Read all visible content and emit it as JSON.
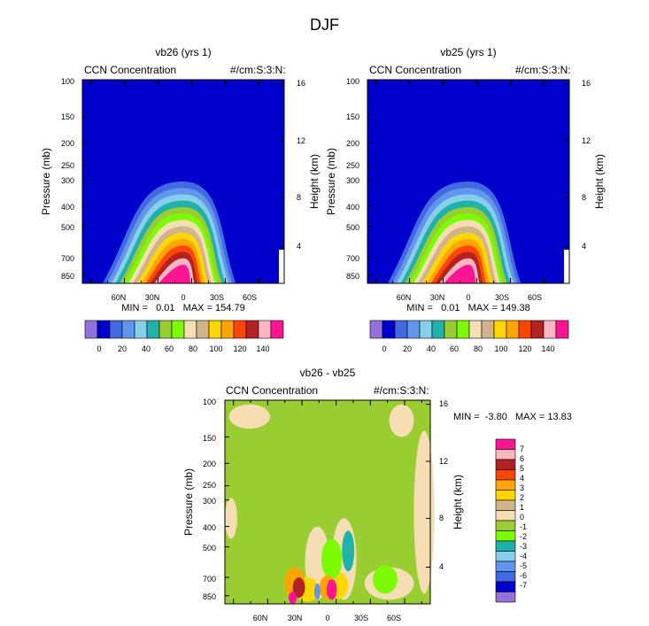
{
  "figure_title": "DJF",
  "chart_data": [
    {
      "type": "heatmap",
      "title": "vb26 (yrs 1)",
      "left_label": "CCN Concentration",
      "right_label": "#/cm:S:3:N:",
      "ylabel": "Pressure (mb)",
      "y2label": "Height (km)",
      "pressure_ticks": [
        "100",
        "150",
        "200",
        "250",
        "300",
        "400",
        "500",
        "700",
        "850"
      ],
      "height_ticks": [
        "16",
        "12",
        "8",
        "4"
      ],
      "lat_ticks": [
        "60N",
        "30N",
        "0",
        "30S",
        "60S"
      ],
      "stats": "MIN =   0.01   MAX = 154.79",
      "min": 0.01,
      "max": 154.79,
      "colorbar_labels": [
        "0",
        "20",
        "40",
        "60",
        "80",
        "100",
        "120",
        "140"
      ],
      "colors": [
        "#9370db",
        "#0000cd",
        "#4169e1",
        "#6495ed",
        "#87ceeb",
        "#20b2aa",
        "#9acd32",
        "#7cfc00",
        "#f5deb3",
        "#d2b48c",
        "#ffd700",
        "#ffa500",
        "#ff4500",
        "#b22222",
        "#ffb6c1",
        "#ff1493"
      ]
    },
    {
      "type": "heatmap",
      "title": "vb25 (yrs 1)",
      "left_label": "CCN Concentration",
      "right_label": "#/cm:S:3:N:",
      "ylabel": "Pressure (mb)",
      "y2label": "Height (km)",
      "pressure_ticks": [
        "100",
        "150",
        "200",
        "250",
        "300",
        "400",
        "500",
        "700",
        "850"
      ],
      "height_ticks": [
        "16",
        "12",
        "8",
        "4"
      ],
      "lat_ticks": [
        "60N",
        "30N",
        "0",
        "30S",
        "60S"
      ],
      "stats": "MIN =   0.01   MAX = 149.38",
      "min": 0.01,
      "max": 149.38,
      "colorbar_labels": [
        "0",
        "20",
        "40",
        "60",
        "80",
        "100",
        "120",
        "140"
      ],
      "colors": [
        "#9370db",
        "#0000cd",
        "#4169e1",
        "#6495ed",
        "#87ceeb",
        "#20b2aa",
        "#9acd32",
        "#7cfc00",
        "#f5deb3",
        "#d2b48c",
        "#ffd700",
        "#ffa500",
        "#ff4500",
        "#b22222",
        "#ffb6c1",
        "#ff1493"
      ]
    },
    {
      "type": "heatmap",
      "title": "vb26 - vb25",
      "left_label": "CCN Concentration",
      "right_label": "#/cm:S:3:N:",
      "ylabel": "Pressure (mb)",
      "y2label": "Height (km)",
      "pressure_ticks": [
        "100",
        "150",
        "200",
        "250",
        "300",
        "400",
        "500",
        "700",
        "850"
      ],
      "height_ticks": [
        "16",
        "12",
        "8",
        "4"
      ],
      "lat_ticks": [
        "60N",
        "30N",
        "0",
        "30S",
        "60S"
      ],
      "stats": "MIN =  -3.80   MAX = 13.83",
      "min": -3.8,
      "max": 13.83,
      "colorbar_labels": [
        "7",
        "6",
        "5",
        "4",
        "3",
        "2",
        "1",
        "0",
        "-1",
        "-2",
        "-3",
        "-4",
        "-5",
        "-6",
        "-7"
      ],
      "colors": [
        "#ff1493",
        "#ffb6c1",
        "#b22222",
        "#ff4500",
        "#ffa500",
        "#ffd700",
        "#d2b48c",
        "#f5deb3",
        "#9acd32",
        "#7cfc00",
        "#20b2aa",
        "#87ceeb",
        "#6495ed",
        "#4169e1",
        "#0000cd",
        "#9370db"
      ]
    }
  ]
}
